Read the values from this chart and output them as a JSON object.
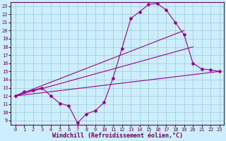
{
  "xlabel": "Windchill (Refroidissement éolien,°C)",
  "bg_color": "#cceeff",
  "line_color": "#990099",
  "xlim": [
    -0.5,
    23.5
  ],
  "ylim": [
    8.5,
    23.5
  ],
  "xticks": [
    0,
    1,
    2,
    3,
    4,
    5,
    6,
    7,
    8,
    9,
    10,
    11,
    12,
    13,
    14,
    15,
    16,
    17,
    18,
    19,
    20,
    21,
    22,
    23
  ],
  "yticks": [
    9,
    10,
    11,
    12,
    13,
    14,
    15,
    16,
    17,
    18,
    19,
    20,
    21,
    22,
    23
  ],
  "line1_x": [
    0,
    1,
    2,
    3,
    4,
    5,
    6,
    7,
    8,
    9,
    10,
    11,
    12,
    13,
    14,
    15,
    16,
    17,
    18,
    19,
    20,
    21,
    22,
    23
  ],
  "line1_y": [
    12,
    12.5,
    12.7,
    13,
    12,
    11.1,
    10.8,
    8.7,
    9.8,
    10.2,
    11.2,
    14.2,
    17.8,
    21.5,
    22.3,
    23.2,
    23.3,
    22.5,
    21,
    19.5,
    16,
    15.3,
    15.2,
    15
  ],
  "line2_x": [
    0,
    19
  ],
  "line2_y": [
    12,
    20
  ],
  "line3_x": [
    0,
    20
  ],
  "line3_y": [
    12,
    18
  ],
  "line4_x": [
    0,
    23
  ],
  "line4_y": [
    12,
    15
  ],
  "grid_color": "#99cccc",
  "tick_fontsize": 5.0,
  "xlabel_fontsize": 6.0,
  "marker": "D",
  "markersize": 2.0,
  "linewidth": 0.8
}
